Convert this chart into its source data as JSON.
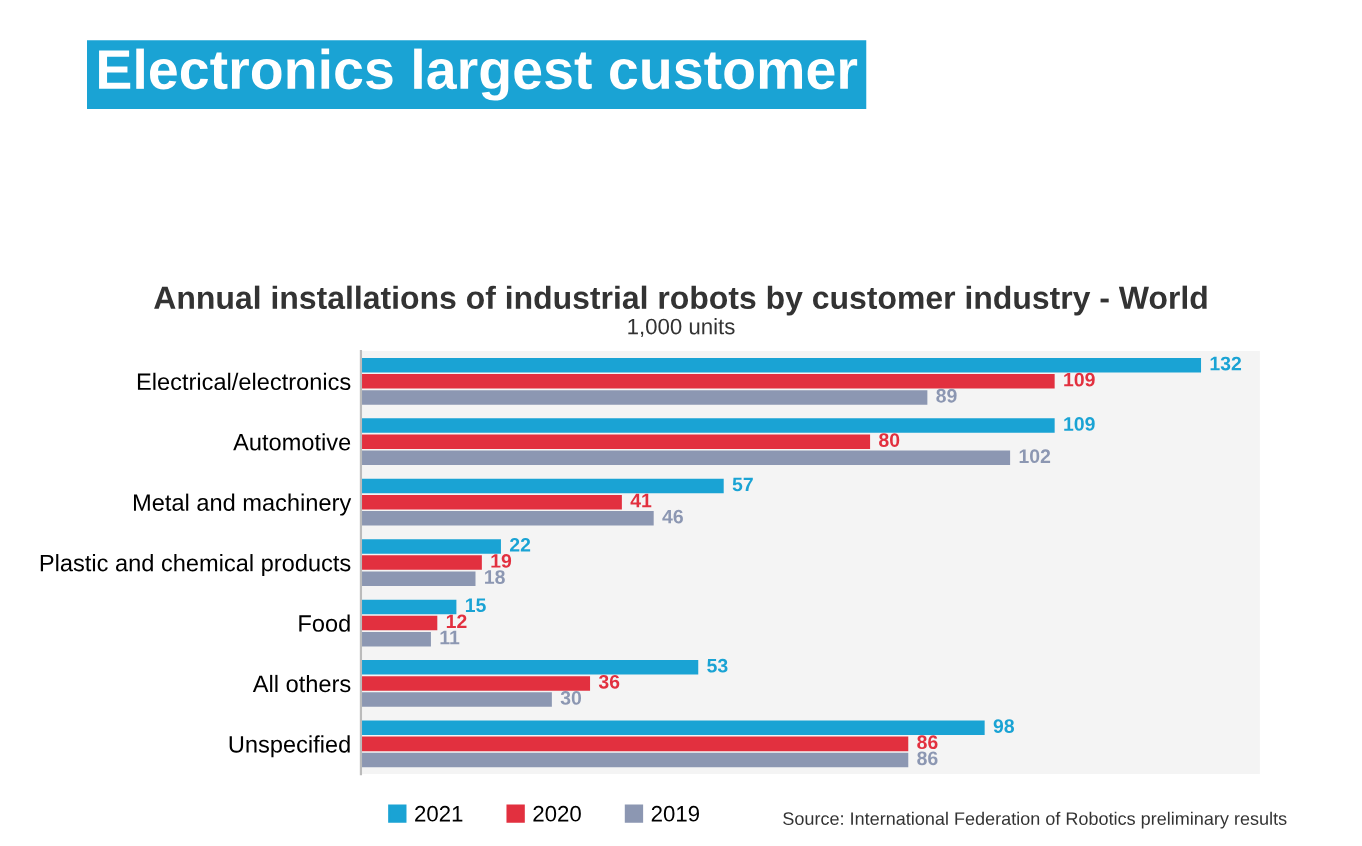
{
  "chart_data": {
    "type": "bar",
    "orientation": "horizontal",
    "title": "Electronics largest customer",
    "subtitle": "Annual installations of industrial robots by customer industry - World",
    "annotations": [
      "1,000 units",
      "Source: International Federation of Robotics preliminary results"
    ],
    "categories": [
      "Electrical/electronics",
      "Automotive",
      "Metal and machinery",
      "Plastic and chemical products",
      "Food",
      "All others",
      "Unspecified"
    ],
    "series": [
      {
        "name": "2021",
        "color": "#1aa3d4",
        "values": [
          132,
          109,
          57,
          22,
          15,
          53,
          98
        ]
      },
      {
        "name": "2020",
        "color": "#e2303f",
        "values": [
          109,
          80,
          41,
          19,
          12,
          36,
          86
        ]
      },
      {
        "name": "2019",
        "color": "#8c97b2",
        "values": [
          89,
          102,
          46,
          18,
          11,
          30,
          86
        ]
      }
    ],
    "data_labels": true,
    "legend": "bottom",
    "grid": false
  }
}
